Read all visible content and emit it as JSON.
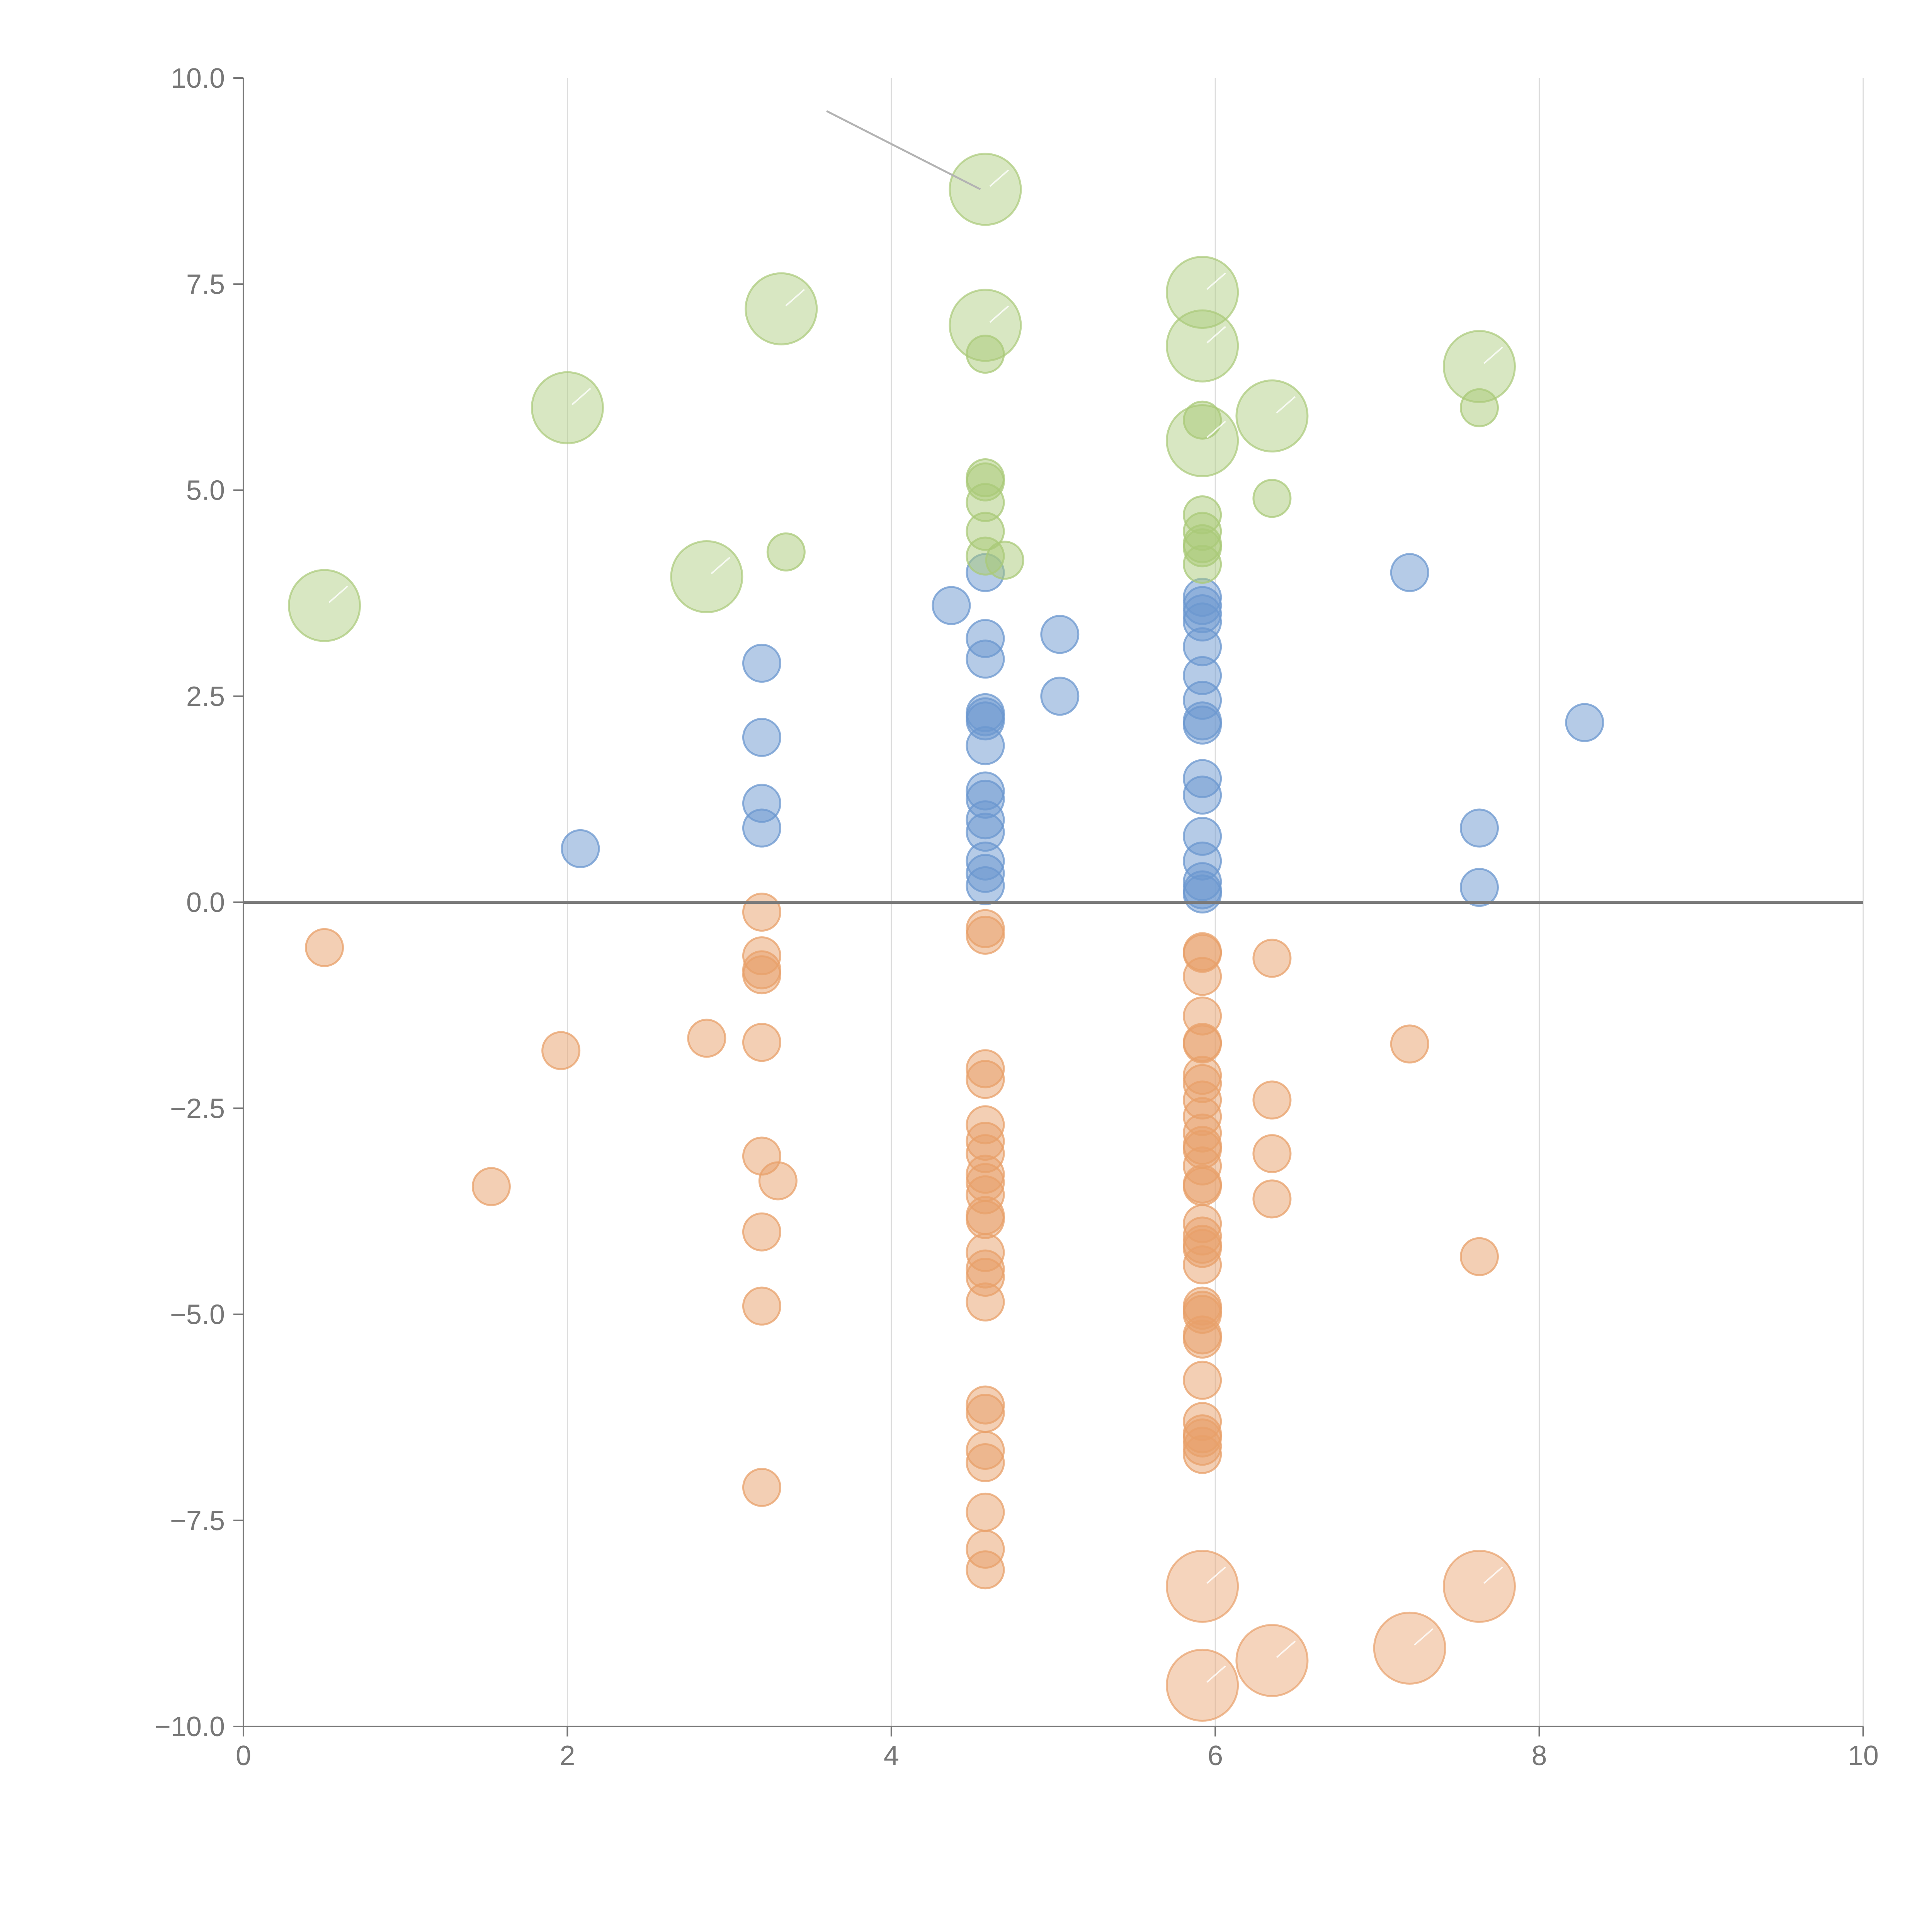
{
  "colors": {
    "positive_low": "#6b97cf",
    "positive_high": "#a9c978",
    "negative": "#e8a06a",
    "zero_line": "#7a7a7a",
    "axis": "#777777",
    "grid": "#dcdcdc",
    "leader": "#b3b3b3"
  },
  "chart_data": {
    "type": "scatter",
    "title": "",
    "xlabel": "",
    "ylabel": "",
    "xlim": [
      0,
      10
    ],
    "ylim": [
      -10,
      10
    ],
    "x_ticks": [
      0,
      2,
      4,
      6,
      8,
      10
    ],
    "x_tick_labels": [
      "0",
      "2",
      "4",
      "6",
      "8",
      "10"
    ],
    "y_ticks": [
      10,
      7.5,
      5,
      2.5,
      0,
      -2.5,
      -5,
      -7.5,
      -10
    ],
    "y_tick_labels": [
      "10.0",
      "7.5",
      "5.0",
      "2.5",
      "0.0",
      "−2.5",
      "−5.0",
      "−7.5",
      "−10.0"
    ],
    "grid": {
      "x": true,
      "y": false
    },
    "reference_line_y": 0,
    "leader_line": {
      "from": [
        3.6,
        9.6
      ],
      "to": [
        4.55,
        8.65
      ]
    },
    "series": [
      {
        "name": "blue",
        "color": "#6b97cf",
        "points": [
          [
            2.08,
            0.65
          ],
          [
            3.2,
            2.9
          ],
          [
            3.2,
            2.0
          ],
          [
            3.2,
            1.2
          ],
          [
            3.2,
            0.9
          ],
          [
            4.37,
            3.6
          ],
          [
            4.58,
            4.0
          ],
          [
            4.58,
            3.2
          ],
          [
            4.58,
            2.95
          ],
          [
            4.58,
            2.3
          ],
          [
            4.58,
            2.25
          ],
          [
            4.58,
            2.2
          ],
          [
            4.58,
            1.9
          ],
          [
            4.58,
            1.35
          ],
          [
            4.58,
            1.25
          ],
          [
            4.58,
            1.0
          ],
          [
            4.58,
            0.85
          ],
          [
            4.58,
            0.5
          ],
          [
            4.58,
            0.35
          ],
          [
            4.58,
            0.2
          ],
          [
            5.04,
            3.25
          ],
          [
            5.04,
            2.5
          ],
          [
            5.92,
            3.7
          ],
          [
            5.92,
            3.6
          ],
          [
            5.92,
            3.5
          ],
          [
            5.92,
            3.4
          ],
          [
            5.92,
            3.1
          ],
          [
            5.92,
            2.75
          ],
          [
            5.92,
            2.45
          ],
          [
            5.92,
            2.2
          ],
          [
            5.92,
            2.15
          ],
          [
            5.92,
            1.5
          ],
          [
            5.92,
            1.3
          ],
          [
            5.92,
            0.8
          ],
          [
            5.92,
            0.5
          ],
          [
            5.92,
            0.25
          ],
          [
            5.92,
            0.15
          ],
          [
            5.92,
            0.1
          ],
          [
            7.2,
            4.0
          ],
          [
            7.63,
            0.9
          ],
          [
            7.63,
            0.18
          ],
          [
            8.28,
            2.18
          ]
        ]
      },
      {
        "name": "green",
        "color": "#a9c978",
        "points": [
          [
            3.35,
            4.25
          ],
          [
            4.58,
            6.65
          ],
          [
            4.58,
            5.15
          ],
          [
            4.58,
            5.1
          ],
          [
            4.58,
            4.85
          ],
          [
            4.58,
            4.5
          ],
          [
            4.58,
            4.2
          ],
          [
            4.7,
            4.15
          ],
          [
            5.92,
            5.85
          ],
          [
            5.92,
            4.7
          ],
          [
            5.92,
            4.5
          ],
          [
            5.92,
            4.35
          ],
          [
            5.92,
            4.3
          ],
          [
            5.92,
            4.1
          ],
          [
            6.35,
            4.9
          ],
          [
            7.63,
            6.0
          ]
        ],
        "large_points": [
          [
            0.5,
            3.6
          ],
          [
            2.0,
            6.0
          ],
          [
            2.86,
            3.95
          ],
          [
            3.32,
            7.2
          ],
          [
            4.58,
            8.65
          ],
          [
            4.58,
            7.0
          ],
          [
            5.92,
            7.4
          ],
          [
            5.92,
            6.75
          ],
          [
            5.92,
            5.6
          ],
          [
            6.35,
            5.9
          ],
          [
            7.63,
            6.5
          ]
        ]
      },
      {
        "name": "orange",
        "color": "#e8a06a",
        "points": [
          [
            0.5,
            -0.55
          ],
          [
            1.53,
            -3.45
          ],
          [
            1.96,
            -1.8
          ],
          [
            2.86,
            -1.65
          ],
          [
            3.2,
            -0.12
          ],
          [
            3.2,
            -0.65
          ],
          [
            3.2,
            -0.82
          ],
          [
            3.2,
            -0.88
          ],
          [
            3.2,
            -1.7
          ],
          [
            3.2,
            -3.08
          ],
          [
            3.2,
            -4.0
          ],
          [
            3.2,
            -4.9
          ],
          [
            3.2,
            -7.1
          ],
          [
            3.3,
            -3.38
          ],
          [
            4.58,
            -0.32
          ],
          [
            4.58,
            -0.4
          ],
          [
            4.58,
            -2.02
          ],
          [
            4.58,
            -2.15
          ],
          [
            4.58,
            -2.7
          ],
          [
            4.58,
            -2.9
          ],
          [
            4.58,
            -3.05
          ],
          [
            4.58,
            -3.3
          ],
          [
            4.58,
            -3.4
          ],
          [
            4.58,
            -3.55
          ],
          [
            4.58,
            -3.8
          ],
          [
            4.58,
            -3.85
          ],
          [
            4.58,
            -4.25
          ],
          [
            4.58,
            -4.45
          ],
          [
            4.58,
            -4.55
          ],
          [
            4.58,
            -4.85
          ],
          [
            4.58,
            -6.1
          ],
          [
            4.58,
            -6.2
          ],
          [
            4.58,
            -6.65
          ],
          [
            4.58,
            -6.8
          ],
          [
            4.58,
            -7.4
          ],
          [
            4.58,
            -7.85
          ],
          [
            4.58,
            -8.1
          ],
          [
            5.92,
            -0.6
          ],
          [
            5.92,
            -0.62
          ],
          [
            5.92,
            -0.9
          ],
          [
            5.92,
            -1.38
          ],
          [
            5.92,
            -1.7
          ],
          [
            5.92,
            -1.72
          ],
          [
            5.92,
            -2.1
          ],
          [
            5.92,
            -2.2
          ],
          [
            5.92,
            -2.4
          ],
          [
            5.92,
            -2.6
          ],
          [
            5.92,
            -2.8
          ],
          [
            5.92,
            -2.95
          ],
          [
            5.92,
            -3.0
          ],
          [
            5.92,
            -3.2
          ],
          [
            5.92,
            -3.42
          ],
          [
            5.92,
            -3.45
          ],
          [
            5.92,
            -3.9
          ],
          [
            5.92,
            -4.05
          ],
          [
            5.92,
            -4.15
          ],
          [
            5.92,
            -4.2
          ],
          [
            5.92,
            -4.4
          ],
          [
            5.92,
            -4.9
          ],
          [
            5.92,
            -4.95
          ],
          [
            5.92,
            -5.0
          ],
          [
            5.92,
            -5.25
          ],
          [
            5.92,
            -5.3
          ],
          [
            5.92,
            -5.8
          ],
          [
            5.92,
            -6.3
          ],
          [
            5.92,
            -6.45
          ],
          [
            5.92,
            -6.5
          ],
          [
            5.92,
            -6.6
          ],
          [
            5.92,
            -6.7
          ],
          [
            6.35,
            -0.68
          ],
          [
            6.35,
            -2.4
          ],
          [
            6.35,
            -3.05
          ],
          [
            6.35,
            -3.6
          ],
          [
            7.2,
            -1.72
          ],
          [
            7.63,
            -4.3
          ]
        ],
        "large_points": [
          [
            5.92,
            -8.3
          ],
          [
            5.92,
            -9.5
          ],
          [
            6.35,
            -9.2
          ],
          [
            7.2,
            -9.05
          ],
          [
            7.63,
            -8.3
          ]
        ]
      }
    ]
  }
}
